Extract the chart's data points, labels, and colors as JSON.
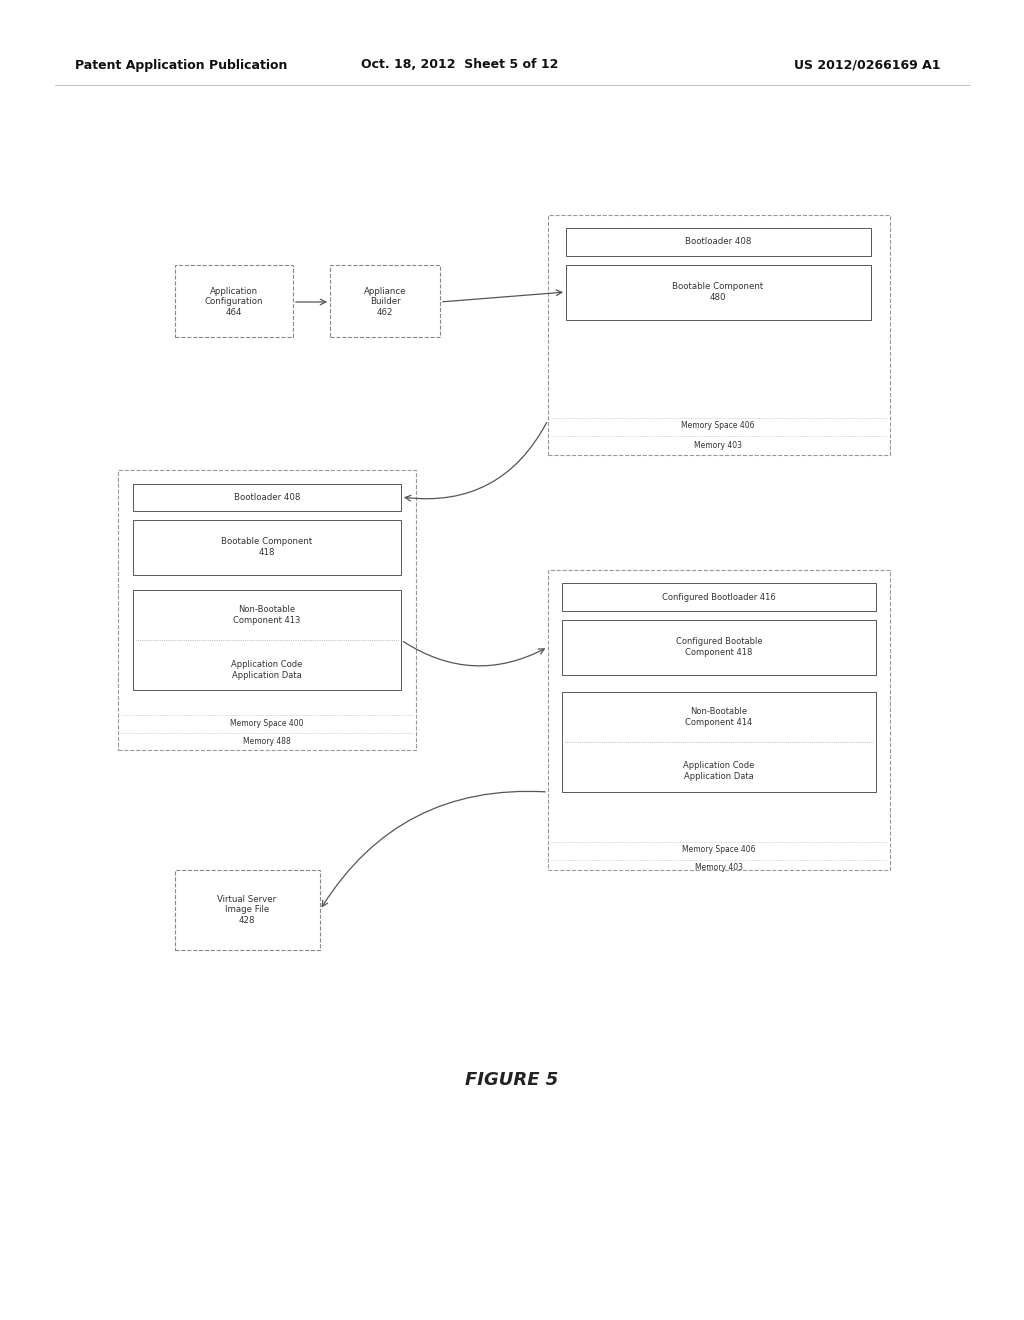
{
  "header_left": "Patent Application Publication",
  "header_mid": "Oct. 18, 2012  Sheet 5 of 12",
  "header_right": "US 2012/0266169 A1",
  "figure_caption": "FIGURE 5",
  "bg_color": "#ffffff"
}
